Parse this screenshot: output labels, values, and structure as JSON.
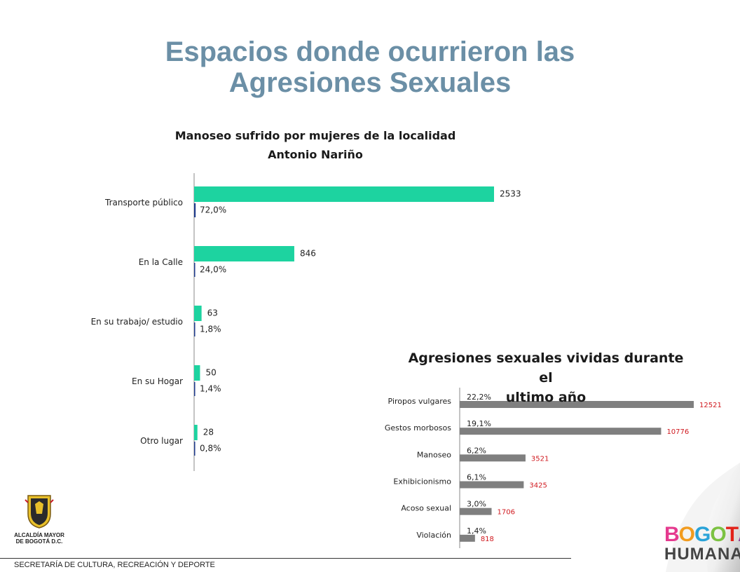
{
  "title": {
    "line1": "Espacios donde ocurrieron las",
    "line2": "Agresiones Sexuales"
  },
  "footer": {
    "text": "SECRETARÍA DE CULTURA, RECREACIÓN Y DEPORTE"
  },
  "logo_left": {
    "line1": "ALCALDÍA MAYOR",
    "line2": "DE BOGOTÁ D.C."
  },
  "brand": {
    "line1": "BOGOTÁ",
    "line2": "HUMANA"
  },
  "colors": {
    "title": "#6b8fa6",
    "bar_count": "#1dd3a0",
    "bar_percent": "#1f3b8c",
    "bar_gray": "#7f7f7f",
    "value_red": "#d0191f"
  },
  "chart_data": [
    {
      "type": "bar",
      "orientation": "horizontal",
      "title_line1": "Manoseo sufrido por mujeres de la localidad",
      "title_line2": "Antonio Nariño",
      "categories": [
        "Transporte público",
        "En la Calle",
        "En su trabajo/ estudio",
        "En su Hogar",
        "Otro lugar"
      ],
      "series": [
        {
          "values": [
            2533,
            846,
            63,
            50,
            28
          ],
          "labels": [
            "2533",
            "846",
            "63",
            "50",
            "28"
          ]
        },
        {
          "values": [
            72.0,
            24.0,
            1.8,
            1.4,
            0.8
          ],
          "labels": [
            "72,0%",
            "24,0%",
            "1,8%",
            "1,4%",
            "0,8%"
          ]
        }
      ],
      "grid": false
    },
    {
      "type": "bar",
      "orientation": "horizontal",
      "title_line1": "Agresiones sexuales vividas durante el",
      "title_line2": "ultimo año",
      "categories": [
        "Piropos vulgares",
        "Gestos morbosos",
        "Manoseo",
        "Exhibicionismo",
        "Acoso sexual",
        "Violación"
      ],
      "values": [
        12521,
        10776,
        3521,
        3425,
        1706,
        818
      ],
      "value_labels": [
        "12521",
        "10776",
        "3521",
        "3425",
        "1706",
        "818"
      ],
      "percent_labels": [
        "22,2%",
        "19,1%",
        "6,2%",
        "6,1%",
        "3,0%",
        "1,4%"
      ],
      "grid": false
    }
  ]
}
